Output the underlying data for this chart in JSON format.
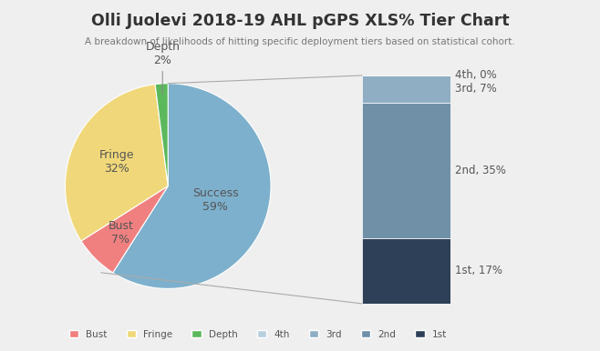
{
  "title": "Olli Juolevi 2018-19 AHL pGPS XLS% Tier Chart",
  "subtitle": "A breakdown of likelihoods of hitting specific deployment tiers based on statistical cohort.",
  "pie_labels": [
    "Success",
    "Bust",
    "Fringe",
    "Depth"
  ],
  "pie_values": [
    59,
    7,
    32,
    2
  ],
  "pie_colors": [
    "#7db0cc",
    "#f08080",
    "#f0d87a",
    "#5cb85c"
  ],
  "bar_labels_ordered": [
    "1st",
    "2nd",
    "3rd",
    "4th"
  ],
  "bar_values_ordered": [
    17,
    35,
    7,
    0
  ],
  "bar_colors_ordered": [
    "#2e4057",
    "#7090a8",
    "#8faec4",
    "#b8cfe0"
  ],
  "background_color": "#efefef",
  "legend_labels": [
    "Bust",
    "Fringe",
    "Depth",
    "4th",
    "3rd",
    "2nd",
    "1st"
  ],
  "legend_colors": [
    "#f08080",
    "#f0d87a",
    "#5cb85c",
    "#b8cfe0",
    "#8faec4",
    "#7090a8",
    "#2e4057"
  ],
  "pie_label_texts": [
    "Success\n59%",
    "Bust\n7%",
    "Fringe\n32%",
    "Depth\n2%"
  ],
  "pie_label_radii": [
    0.48,
    0.65,
    0.55,
    0.0
  ],
  "label_color": "#555555"
}
